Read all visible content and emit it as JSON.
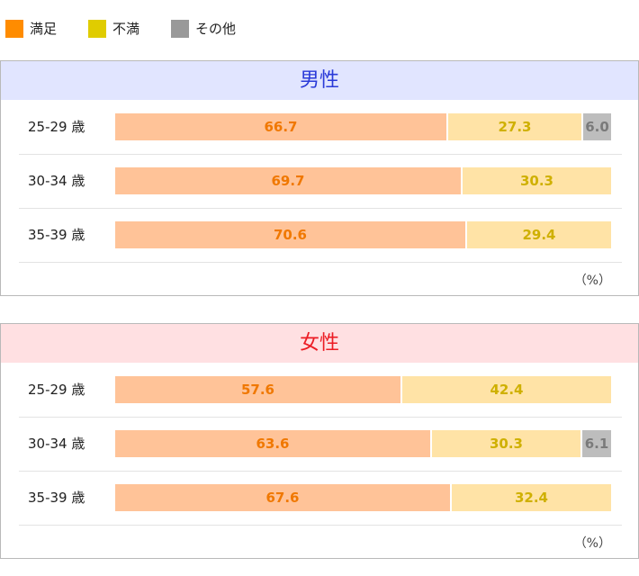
{
  "legend": [
    {
      "label": "満足",
      "color": "#ff8c00"
    },
    {
      "label": "不満",
      "color": "#e0cc00"
    },
    {
      "label": "その他",
      "color": "#999999"
    }
  ],
  "colors": {
    "satisfied_bar": "#ffc398",
    "satisfied_text": "#f07800",
    "dissatisfied_bar": "#ffe3a6",
    "dissatisfied_text": "#cfb000",
    "other_bar": "#bdbdbd",
    "other_text": "#7a7a7a",
    "male_header_bg": "#e1e5ff",
    "male_header_text": "#2a3ad8",
    "female_header_bg": "#ffe0e2",
    "female_header_text": "#ec1c24"
  },
  "unit_label": "（%）",
  "chart_data": [
    {
      "type": "bar",
      "stacked": true,
      "orientation": "horizontal",
      "title": "男性",
      "categories": [
        "25-29 歳",
        "30-34 歳",
        "35-39 歳"
      ],
      "series": [
        {
          "name": "満足",
          "values": [
            66.7,
            69.7,
            70.6
          ],
          "labels": [
            "66.7",
            "69.7",
            "70.6"
          ]
        },
        {
          "name": "不満",
          "values": [
            27.3,
            30.3,
            29.4
          ],
          "labels": [
            "27.3",
            "30.3",
            "29.4"
          ]
        },
        {
          "name": "その他",
          "values": [
            6.0,
            0,
            0
          ],
          "labels": [
            "6.0",
            "",
            ""
          ]
        }
      ],
      "unit": "（%）",
      "xlim": [
        0,
        100
      ]
    },
    {
      "type": "bar",
      "stacked": true,
      "orientation": "horizontal",
      "title": "女性",
      "categories": [
        "25-29 歳",
        "30-34 歳",
        "35-39 歳"
      ],
      "series": [
        {
          "name": "満足",
          "values": [
            57.6,
            63.6,
            67.6
          ],
          "labels": [
            "57.6",
            "63.6",
            "67.6"
          ]
        },
        {
          "name": "不満",
          "values": [
            42.4,
            30.3,
            32.4
          ],
          "labels": [
            "42.4",
            "30.3",
            "32.4"
          ]
        },
        {
          "name": "その他",
          "values": [
            0,
            6.1,
            0
          ],
          "labels": [
            "",
            "6.1",
            ""
          ]
        }
      ],
      "unit": "（%）",
      "xlim": [
        0,
        100
      ]
    }
  ]
}
